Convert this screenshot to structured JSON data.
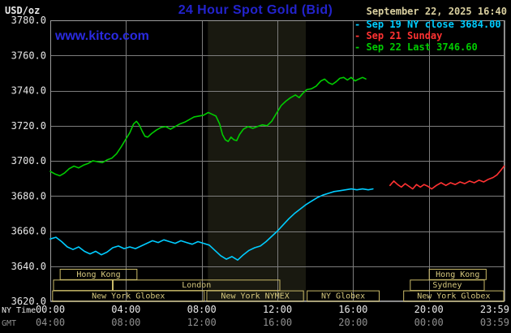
{
  "header": {
    "units_label": "USD/oz",
    "title": "24 Hour Spot Gold (Bid)",
    "datetime": "September 22, 2025 16:40",
    "watermark": "www.kitco.com",
    "legend": [
      {
        "label": "- Sep 19 NY close 3684.00",
        "color": "#00ccff"
      },
      {
        "label": "- Sep 21 Sunday",
        "color": "#ff3232"
      },
      {
        "label": "- Sep 22 Last 3746.60",
        "color": "#00cc00"
      }
    ]
  },
  "chart_data": {
    "type": "line",
    "title": "24 Hour Spot Gold (Bid)",
    "ylabel": "USD/oz",
    "x_unit": "hour of day, NY time",
    "xlim": [
      0,
      24
    ],
    "ylim": [
      3620,
      3780
    ],
    "grid": true,
    "legend_position": "top-right",
    "y_tick_labels": [
      "3780.0",
      "3760.0",
      "3740.0",
      "3720.0",
      "3700.0",
      "3680.0",
      "3660.0",
      "3640.0",
      "3620.0"
    ],
    "x_tick_hours": [
      0,
      4,
      8,
      12,
      16,
      20,
      23.983
    ],
    "x_axis_rows": [
      {
        "caption": "NY Time",
        "ticks": [
          "00:00",
          "04:00",
          "08:00",
          "12:00",
          "16:00",
          "20:00",
          "23:59"
        ],
        "color_key": "axis_text"
      },
      {
        "caption": "GMT",
        "ticks": [
          "04:00",
          "08:00",
          "12:00",
          "16:00",
          "20:00",
          "00:00",
          "03:59"
        ],
        "color_key": "axis_text_dim"
      }
    ],
    "nymex_band_hours": [
      8.33,
      13.5
    ],
    "series": [
      {
        "id": "sep22-last",
        "name": "Sep 22 Last 3746.60",
        "color": "#00cc00",
        "points": [
          [
            0,
            3694
          ],
          [
            0.25,
            3692.5
          ],
          [
            0.5,
            3691.5
          ],
          [
            0.75,
            3693
          ],
          [
            1,
            3695.5
          ],
          [
            1.25,
            3697
          ],
          [
            1.5,
            3696
          ],
          [
            1.75,
            3697.5
          ],
          [
            2,
            3698.5
          ],
          [
            2.25,
            3700
          ],
          [
            2.5,
            3699.5
          ],
          [
            2.75,
            3699
          ],
          [
            3,
            3700.5
          ],
          [
            3.25,
            3701.5
          ],
          [
            3.5,
            3704
          ],
          [
            3.75,
            3708
          ],
          [
            4,
            3712.5
          ],
          [
            4.2,
            3716
          ],
          [
            4.4,
            3721
          ],
          [
            4.55,
            3722.5
          ],
          [
            4.7,
            3720.5
          ],
          [
            4.85,
            3717
          ],
          [
            5,
            3714
          ],
          [
            5.15,
            3713.5
          ],
          [
            5.35,
            3715.5
          ],
          [
            5.6,
            3717.5
          ],
          [
            5.85,
            3719
          ],
          [
            6.1,
            3719.5
          ],
          [
            6.35,
            3718
          ],
          [
            6.6,
            3719.5
          ],
          [
            6.85,
            3721
          ],
          [
            7.1,
            3722
          ],
          [
            7.35,
            3723.5
          ],
          [
            7.6,
            3725
          ],
          [
            7.85,
            3725.5
          ],
          [
            8.1,
            3726
          ],
          [
            8.35,
            3727.5
          ],
          [
            8.55,
            3726.5
          ],
          [
            8.75,
            3725.5
          ],
          [
            8.95,
            3721
          ],
          [
            9.1,
            3715
          ],
          [
            9.25,
            3712
          ],
          [
            9.4,
            3711
          ],
          [
            9.55,
            3713.5
          ],
          [
            9.7,
            3712
          ],
          [
            9.85,
            3711.5
          ],
          [
            10,
            3715
          ],
          [
            10.2,
            3718
          ],
          [
            10.45,
            3719.5
          ],
          [
            10.7,
            3718.5
          ],
          [
            10.95,
            3719.5
          ],
          [
            11.2,
            3720.5
          ],
          [
            11.45,
            3720
          ],
          [
            11.7,
            3722.5
          ],
          [
            11.95,
            3727
          ],
          [
            12.2,
            3731.5
          ],
          [
            12.45,
            3734
          ],
          [
            12.7,
            3736
          ],
          [
            12.95,
            3737.5
          ],
          [
            13.15,
            3736
          ],
          [
            13.35,
            3738.5
          ],
          [
            13.55,
            3740.5
          ],
          [
            13.8,
            3741
          ],
          [
            14.05,
            3742.5
          ],
          [
            14.3,
            3745.5
          ],
          [
            14.5,
            3746.5
          ],
          [
            14.7,
            3744.5
          ],
          [
            14.9,
            3743.5
          ],
          [
            15.1,
            3745
          ],
          [
            15.3,
            3747
          ],
          [
            15.5,
            3747.5
          ],
          [
            15.7,
            3746
          ],
          [
            15.9,
            3747.5
          ],
          [
            16.1,
            3745.5
          ],
          [
            16.3,
            3746.5
          ],
          [
            16.5,
            3747.5
          ],
          [
            16.67,
            3746.6
          ]
        ]
      },
      {
        "id": "sep19-ny-close",
        "name": "Sep 19 NY close 3684.00",
        "color": "#00ccff",
        "points": [
          [
            0,
            3655.5
          ],
          [
            0.3,
            3656.5
          ],
          [
            0.6,
            3654
          ],
          [
            0.9,
            3651
          ],
          [
            1.2,
            3649.5
          ],
          [
            1.5,
            3651
          ],
          [
            1.8,
            3648.5
          ],
          [
            2.1,
            3647
          ],
          [
            2.4,
            3648.5
          ],
          [
            2.7,
            3646.5
          ],
          [
            3,
            3648
          ],
          [
            3.3,
            3650.5
          ],
          [
            3.6,
            3651.5
          ],
          [
            3.9,
            3650
          ],
          [
            4.2,
            3651
          ],
          [
            4.5,
            3650
          ],
          [
            4.8,
            3651.5
          ],
          [
            5.1,
            3653
          ],
          [
            5.4,
            3654.5
          ],
          [
            5.7,
            3653.5
          ],
          [
            6,
            3655
          ],
          [
            6.3,
            3654
          ],
          [
            6.6,
            3653
          ],
          [
            6.9,
            3654.5
          ],
          [
            7.2,
            3653.5
          ],
          [
            7.5,
            3652.5
          ],
          [
            7.8,
            3654
          ],
          [
            8.1,
            3653
          ],
          [
            8.4,
            3652
          ],
          [
            8.7,
            3649
          ],
          [
            9,
            3646
          ],
          [
            9.3,
            3644
          ],
          [
            9.6,
            3645.5
          ],
          [
            9.9,
            3643.5
          ],
          [
            10.2,
            3646.5
          ],
          [
            10.5,
            3649
          ],
          [
            10.8,
            3650.5
          ],
          [
            11.1,
            3651.5
          ],
          [
            11.4,
            3654
          ],
          [
            11.7,
            3657
          ],
          [
            12,
            3660
          ],
          [
            12.3,
            3663.5
          ],
          [
            12.6,
            3667
          ],
          [
            12.9,
            3670
          ],
          [
            13.2,
            3672.5
          ],
          [
            13.5,
            3675
          ],
          [
            13.8,
            3677
          ],
          [
            14.1,
            3679
          ],
          [
            14.4,
            3680.5
          ],
          [
            14.7,
            3681.5
          ],
          [
            15,
            3682.5
          ],
          [
            15.3,
            3683
          ],
          [
            15.6,
            3683.5
          ],
          [
            15.9,
            3684
          ],
          [
            16.2,
            3683.5
          ],
          [
            16.5,
            3684
          ],
          [
            16.8,
            3683.5
          ],
          [
            17.05,
            3684
          ]
        ]
      },
      {
        "id": "sep21-sunday",
        "name": "Sep 21 Sunday",
        "color": "#ff3232",
        "points": [
          [
            17.95,
            3686
          ],
          [
            18.15,
            3688.5
          ],
          [
            18.35,
            3686.5
          ],
          [
            18.55,
            3685
          ],
          [
            18.75,
            3687
          ],
          [
            18.95,
            3685.5
          ],
          [
            19.15,
            3684
          ],
          [
            19.35,
            3686.5
          ],
          [
            19.55,
            3685
          ],
          [
            19.75,
            3686.5
          ],
          [
            19.95,
            3685.5
          ],
          [
            20.15,
            3684
          ],
          [
            20.4,
            3686
          ],
          [
            20.65,
            3687.5
          ],
          [
            20.9,
            3686
          ],
          [
            21.15,
            3687.5
          ],
          [
            21.4,
            3686.5
          ],
          [
            21.65,
            3688
          ],
          [
            21.9,
            3687
          ],
          [
            22.15,
            3688.5
          ],
          [
            22.4,
            3687.5
          ],
          [
            22.65,
            3689
          ],
          [
            22.9,
            3688
          ],
          [
            23.15,
            3689.5
          ],
          [
            23.4,
            3690.5
          ],
          [
            23.6,
            3692
          ],
          [
            23.8,
            3694.5
          ],
          [
            23.98,
            3697
          ]
        ]
      }
    ],
    "sessions": [
      {
        "row": 0,
        "label": "Hong Kong",
        "start_hour": 0.5,
        "end_hour": 4.6
      },
      {
        "row": 0,
        "label": "Hong Kong",
        "start_hour": 20.0,
        "end_hour": 23.05
      },
      {
        "row": 1,
        "label": "",
        "start_hour": 0.15,
        "end_hour": 3.3
      },
      {
        "row": 1,
        "label": "London",
        "start_hour": 3.3,
        "end_hour": 12.15
      },
      {
        "row": 1,
        "label": "Sydney",
        "start_hour": 19.0,
        "end_hour": 22.95
      },
      {
        "row": 2,
        "label": "New York Globex",
        "start_hour": 0.1,
        "end_hour": 8.15
      },
      {
        "row": 2,
        "label": "New York NYMEX",
        "start_hour": 8.25,
        "end_hour": 13.4
      },
      {
        "row": 2,
        "label": "NY Globex",
        "start_hour": 13.55,
        "end_hour": 17.4
      },
      {
        "row": 2,
        "label": "New York Globex",
        "start_hour": 18.65,
        "end_hour": 23.98
      }
    ],
    "colors": {
      "background": "#000000",
      "band": "#191910",
      "grid": "#7d7d7d",
      "border": "#9b9b9b",
      "axis_text": "#e8e8e8",
      "axis_text_dim": "#909090",
      "session_box": "#c9b968",
      "session_text": "#d6c87e",
      "title_blue": "#2323cd",
      "link_blue": "#2a2ae0",
      "date_text": "#d9cf9f"
    }
  }
}
